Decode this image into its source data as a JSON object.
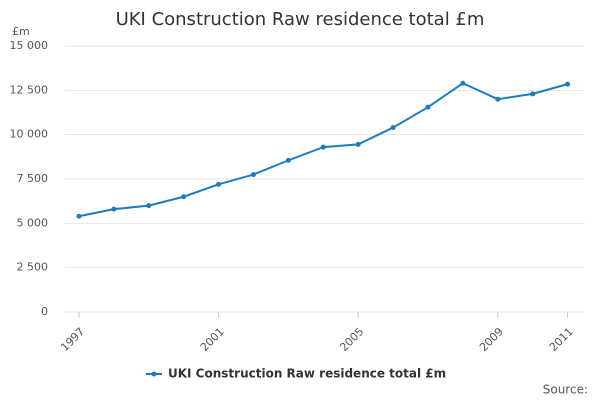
{
  "chart_data": {
    "type": "line",
    "title": "UKI Construction Raw residence total £m",
    "y_label": "£m",
    "source": "Source:",
    "x": [
      1997,
      1998,
      1999,
      2000,
      2001,
      2002,
      2003,
      2004,
      2005,
      2006,
      2007,
      2008,
      2009,
      2010,
      2011
    ],
    "series": [
      {
        "name": "UKI Construction Raw residence total £m",
        "color": "#1f7bbf",
        "values": [
          5400,
          5800,
          6000,
          6500,
          7200,
          7750,
          8550,
          9300,
          9450,
          10400,
          11550,
          12900,
          12000,
          12300,
          12850
        ]
      }
    ],
    "xlim": [
      1996.6,
      2011.5
    ],
    "xticks": [
      1997,
      2001,
      2005,
      2009,
      2011
    ],
    "ylim": [
      0,
      15000
    ],
    "yticks": [
      0,
      {
        "value": 2500,
        "label": "2 500"
      },
      {
        "value": 5000,
        "label": "5 000"
      },
      {
        "value": 7500,
        "label": "7 500"
      },
      {
        "value": 10000,
        "label": "10 000"
      },
      {
        "value": 12500,
        "label": "12 500"
      },
      {
        "value": 15000,
        "label": "15 000"
      }
    ],
    "grid": true
  }
}
